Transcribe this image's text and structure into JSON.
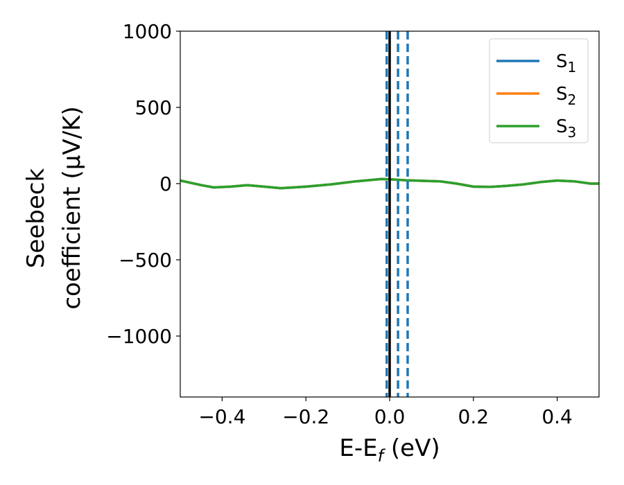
{
  "chart_data": {
    "type": "line",
    "xlabel": {
      "main": "E-E",
      "sub": "f",
      "unit": " (eV)"
    },
    "ylabel": {
      "line1": "Seebeck",
      "line2": "coefficient  (μV/K)"
    },
    "xlim": [
      -0.5,
      0.5
    ],
    "ylim": [
      -1400,
      1000
    ],
    "xticks": [
      -0.4,
      -0.2,
      0.0,
      0.2,
      0.4
    ],
    "xtick_labels": [
      "−0.4",
      "−0.2",
      "0.0",
      "0.2",
      "0.4"
    ],
    "yticks": [
      1000,
      500,
      0,
      -500,
      -1000
    ],
    "ytick_labels": [
      "1000",
      "500",
      "0",
      "−500",
      "−1000"
    ],
    "grid": false,
    "legend": "top-right",
    "series": [
      {
        "name": "S",
        "sub": "1",
        "color": "#1f77b4",
        "x": [
          -0.5,
          -0.45,
          -0.42,
          -0.38,
          -0.34,
          -0.3,
          -0.26,
          -0.2,
          -0.14,
          -0.08,
          -0.02,
          0.0,
          0.04,
          0.08,
          0.12,
          0.16,
          0.2,
          0.24,
          0.28,
          0.32,
          0.36,
          0.4,
          0.44,
          0.48,
          0.5
        ],
        "y": [
          20,
          -10,
          -25,
          -20,
          -10,
          -20,
          -30,
          -20,
          -5,
          15,
          30,
          28,
          22,
          18,
          15,
          0,
          -20,
          -22,
          -15,
          -5,
          10,
          20,
          15,
          0,
          0
        ]
      },
      {
        "name": "S",
        "sub": "2",
        "color": "#ff7f0e",
        "x": [
          -0.5,
          -0.45,
          -0.42,
          -0.38,
          -0.34,
          -0.3,
          -0.26,
          -0.2,
          -0.14,
          -0.08,
          -0.02,
          0.0,
          0.04,
          0.08,
          0.12,
          0.16,
          0.2,
          0.24,
          0.28,
          0.32,
          0.36,
          0.4,
          0.44,
          0.48,
          0.5
        ],
        "y": [
          20,
          -10,
          -25,
          -20,
          -10,
          -20,
          -30,
          -20,
          -5,
          15,
          30,
          28,
          22,
          18,
          15,
          0,
          -20,
          -22,
          -15,
          -5,
          10,
          20,
          15,
          0,
          0
        ]
      },
      {
        "name": "S",
        "sub": "3",
        "color": "#2ca02c",
        "x": [
          -0.5,
          -0.45,
          -0.42,
          -0.38,
          -0.34,
          -0.3,
          -0.26,
          -0.2,
          -0.14,
          -0.08,
          -0.02,
          0.0,
          0.04,
          0.08,
          0.12,
          0.16,
          0.2,
          0.24,
          0.28,
          0.32,
          0.36,
          0.4,
          0.44,
          0.48,
          0.5
        ],
        "y": [
          20,
          -10,
          -25,
          -20,
          -10,
          -20,
          -30,
          -20,
          -5,
          15,
          30,
          28,
          22,
          18,
          15,
          0,
          -20,
          -22,
          -15,
          -5,
          10,
          20,
          15,
          0,
          0
        ]
      }
    ],
    "vertical_lines": [
      {
        "x": 0.0,
        "color": "#000000",
        "style": "solid"
      },
      {
        "x": -0.007,
        "color": "#1f77b4",
        "style": "dashed"
      },
      {
        "x": 0.02,
        "color": "#1f77b4",
        "style": "dashed"
      },
      {
        "x": 0.043,
        "color": "#1f77b4",
        "style": "dashed"
      }
    ]
  }
}
